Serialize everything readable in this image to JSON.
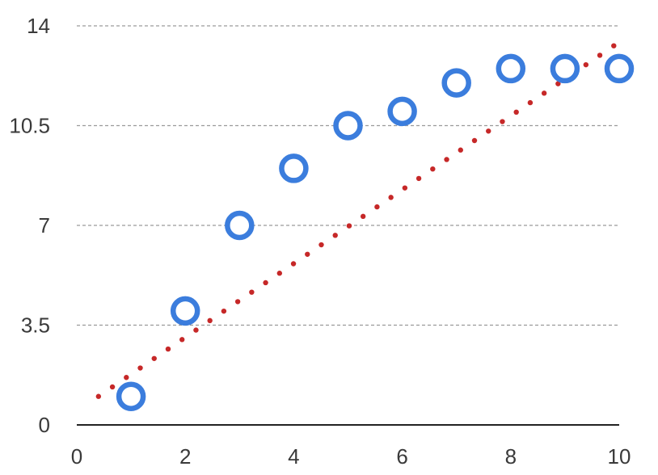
{
  "chart_data": {
    "type": "scatter",
    "title": "",
    "xlabel": "",
    "ylabel": "",
    "xlim": [
      0,
      10
    ],
    "ylim": [
      0,
      14
    ],
    "x_ticks": [
      "0",
      "2",
      "4",
      "6",
      "8",
      "10"
    ],
    "y_ticks": [
      "0",
      "3.5",
      "7",
      "10.5",
      "14"
    ],
    "grid": true,
    "series": [
      {
        "type": "scatter",
        "color": "#3b7ddd",
        "marker": "open-circle",
        "x": [
          1,
          2,
          3,
          4,
          5,
          6,
          7,
          8,
          9,
          10
        ],
        "y": [
          1,
          4,
          7,
          9,
          10.5,
          11,
          12,
          12.5,
          12.5,
          12.5
        ]
      },
      {
        "type": "trendline",
        "color": "#c62828",
        "style": "dotted",
        "x": [
          0.4,
          9.9
        ],
        "y": [
          1,
          13.3
        ]
      }
    ]
  }
}
